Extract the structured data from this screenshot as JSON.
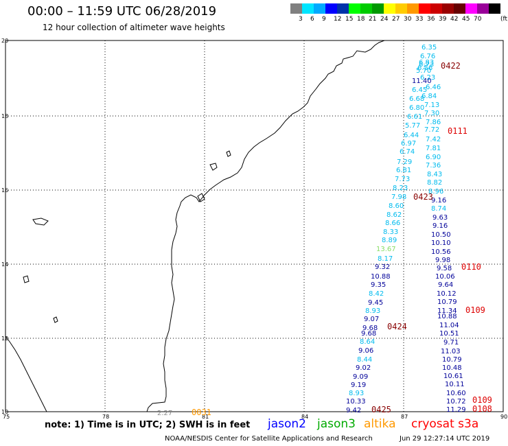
{
  "header": {
    "title": "00:00 – 11:59 UTC 06/28/2019",
    "subtitle": "12 hour collection of altimeter wave heights"
  },
  "legend": {
    "colors": [
      "#808080",
      "#00e5ff",
      "#00aaff",
      "#0000ff",
      "#0033aa",
      "#00ff00",
      "#00cc00",
      "#009900",
      "#ffff00",
      "#ffcc00",
      "#ff9900",
      "#ff0000",
      "#cc0000",
      "#990000",
      "#660000",
      "#ff00ff",
      "#990099",
      "#000000"
    ],
    "labels": [
      "3",
      "6",
      "9",
      "12",
      "15",
      "18",
      "21",
      "24",
      "27",
      "30",
      "33",
      "36",
      "39",
      "42",
      "45",
      "70"
    ],
    "unit": "(ft)"
  },
  "axes": {
    "x_ticks": [
      "75",
      "78",
      "81",
      "84",
      "87",
      "90"
    ],
    "y_ticks": [
      "20",
      "18",
      "16",
      "14",
      "12",
      "10"
    ]
  },
  "tracks": {
    "jason3_west": [
      {
        "v": "6.35",
        "c": "#00bbee"
      },
      {
        "v": "6.76",
        "c": "#00bbee"
      },
      {
        "v": "6.83",
        "c": "#00bbee"
      },
      {
        "v": "6.73",
        "c": "#00bbee"
      },
      {
        "v": "6.56",
        "c": "#00bbee"
      },
      {
        "v": "5.70",
        "c": "#00bbee"
      },
      {
        "v": "6.23",
        "c": "#00bbee"
      },
      {
        "v": "11.40",
        "c": "#000099"
      },
      {
        "v": "6.46",
        "c": "#00bbee"
      },
      {
        "v": "6.45",
        "c": "#00bbee"
      },
      {
        "v": "6.84",
        "c": "#00bbee"
      },
      {
        "v": "6.68",
        "c": "#00bbee"
      },
      {
        "v": "7.13",
        "c": "#00bbee"
      },
      {
        "v": "6.80",
        "c": "#00bbee"
      },
      {
        "v": "7.30",
        "c": "#00bbee"
      },
      {
        "v": "6.61",
        "c": "#00bbee"
      },
      {
        "v": "7.86",
        "c": "#00bbee"
      },
      {
        "v": "5.77",
        "c": "#00bbee"
      },
      {
        "v": "7.72",
        "c": "#00bbee"
      },
      {
        "v": "6.44",
        "c": "#00bbee"
      },
      {
        "v": "7.42",
        "c": "#00bbee"
      },
      {
        "v": "6.97",
        "c": "#00bbee"
      },
      {
        "v": "7.81",
        "c": "#00bbee"
      },
      {
        "v": "6.74",
        "c": "#00bbee"
      },
      {
        "v": "6.90",
        "c": "#00bbee"
      },
      {
        "v": "7.29",
        "c": "#00bbee"
      },
      {
        "v": "7.36",
        "c": "#00bbee"
      },
      {
        "v": "6.81",
        "c": "#00bbee"
      },
      {
        "v": "8.43",
        "c": "#00bbee"
      },
      {
        "v": "7.73",
        "c": "#00bbee"
      },
      {
        "v": "8.82",
        "c": "#00bbee"
      },
      {
        "v": "8.23",
        "c": "#00bbee"
      },
      {
        "v": "8.96",
        "c": "#00bbee"
      },
      {
        "v": "7.98",
        "c": "#00bbee"
      },
      {
        "v": "9.16",
        "c": "#000099"
      },
      {
        "v": "8.60",
        "c": "#00bbee"
      },
      {
        "v": "8.74",
        "c": "#00bbee"
      },
      {
        "v": "8.62",
        "c": "#00bbee"
      },
      {
        "v": "9.63",
        "c": "#000099"
      },
      {
        "v": "8.66",
        "c": "#00bbee"
      },
      {
        "v": "9.16",
        "c": "#000099"
      },
      {
        "v": "8.33",
        "c": "#00bbee"
      },
      {
        "v": "10.50",
        "c": "#000099"
      },
      {
        "v": "8.89",
        "c": "#00bbee"
      },
      {
        "v": "10.10",
        "c": "#000099"
      },
      {
        "v": "13.67",
        "c": "#88dd66"
      },
      {
        "v": "10.56",
        "c": "#000099"
      },
      {
        "v": "8.17",
        "c": "#00bbee"
      },
      {
        "v": "9.98",
        "c": "#000099"
      },
      {
        "v": "9.32",
        "c": "#000099"
      },
      {
        "v": "9.58",
        "c": "#000099"
      },
      {
        "v": "10.88",
        "c": "#000099"
      },
      {
        "v": "10.06",
        "c": "#000099"
      },
      {
        "v": "9.35",
        "c": "#000099"
      },
      {
        "v": "9.64",
        "c": "#000099"
      },
      {
        "v": "8.42",
        "c": "#00bbee"
      },
      {
        "v": "10.12",
        "c": "#000099"
      },
      {
        "v": "9.45",
        "c": "#000099"
      },
      {
        "v": "10.79",
        "c": "#000099"
      },
      {
        "v": "8.93",
        "c": "#00bbee"
      },
      {
        "v": "11.34",
        "c": "#000099"
      },
      {
        "v": "9.07",
        "c": "#000099"
      },
      {
        "v": "10.88",
        "c": "#000099"
      },
      {
        "v": "9.68",
        "c": "#000099"
      },
      {
        "v": "11.04",
        "c": "#000099"
      },
      {
        "v": "9.68",
        "c": "#000099"
      },
      {
        "v": "10.51",
        "c": "#000099"
      },
      {
        "v": "8.64",
        "c": "#00bbee"
      },
      {
        "v": "9.71",
        "c": "#000099"
      },
      {
        "v": "9.06",
        "c": "#000099"
      },
      {
        "v": "11.03",
        "c": "#000099"
      },
      {
        "v": "8.44",
        "c": "#00bbee"
      },
      {
        "v": "10.79",
        "c": "#000099"
      },
      {
        "v": "9.02",
        "c": "#000099"
      },
      {
        "v": "10.48",
        "c": "#000099"
      },
      {
        "v": "9.09",
        "c": "#000099"
      },
      {
        "v": "10.61",
        "c": "#000099"
      },
      {
        "v": "9.19",
        "c": "#000099"
      },
      {
        "v": "10.11",
        "c": "#000099"
      },
      {
        "v": "8.93",
        "c": "#00bbee"
      },
      {
        "v": "10.60",
        "c": "#000099"
      },
      {
        "v": "10.33",
        "c": "#000099"
      },
      {
        "v": "10.72",
        "c": "#000099"
      },
      {
        "v": "9.42",
        "c": "#000099"
      },
      {
        "v": "11.29",
        "c": "#000099"
      },
      {
        "v": "2.27",
        "c": "#888888"
      }
    ],
    "time_labels": [
      {
        "t": "0422",
        "c": "#880000"
      },
      {
        "t": "0111",
        "c": "#dd0000"
      },
      {
        "t": "0423",
        "c": "#880000"
      },
      {
        "t": "0110",
        "c": "#dd0000"
      },
      {
        "t": "0109",
        "c": "#dd0000"
      },
      {
        "t": "0424",
        "c": "#880000"
      },
      {
        "t": "0109",
        "c": "#dd0000"
      },
      {
        "t": "0108",
        "c": "#dd0000"
      },
      {
        "t": "0425",
        "c": "#880000"
      },
      {
        "t": "0031",
        "c": "#ff9900"
      }
    ]
  },
  "footer": {
    "note": "note: 1) Time is in UTC; 2) SWH is in feet",
    "satellites": [
      {
        "name": "jason2",
        "color": "#0000ff"
      },
      {
        "name": "jason3",
        "color": "#00aa00"
      },
      {
        "name": "altika",
        "color": "#ff9900"
      },
      {
        "name": "cryosat s3a",
        "color": "#ff0000"
      }
    ],
    "credit": "NOAA/NESDIS Center for Satellite Applications and Research",
    "timestamp": "Jun 29 12:27:14 UTC 2019"
  }
}
